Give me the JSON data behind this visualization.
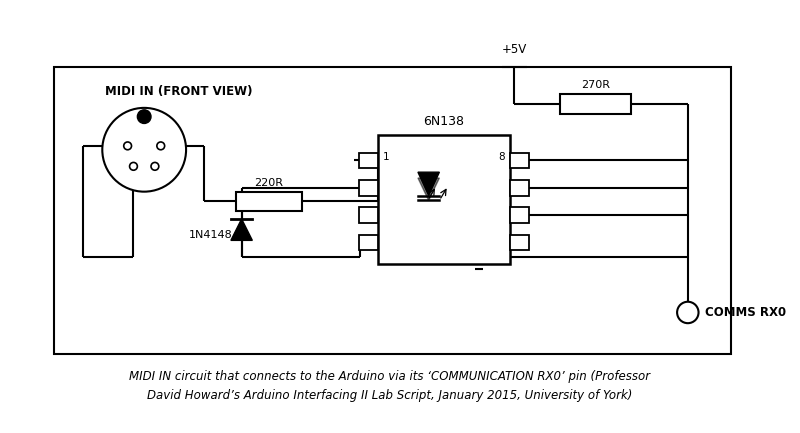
{
  "caption_line1": "MIDI IN circuit that connects to the Arduino via its ‘COMMUNICATION RX0’ pin (Professor",
  "caption_line2": "David Howard’s Arduino Interfacing II Lab Script, January 2015, University of York)",
  "bg_color": "#ffffff",
  "label_midi_in": "MIDI IN (FRONT VIEW)",
  "label_220r": "220R",
  "label_1n4148": "1N4148",
  "label_6n138": "6N138",
  "label_270r": "270R",
  "label_5v": "+5V",
  "label_comms": "COMMS RX0",
  "label_pin1": "1",
  "label_pin8": "8"
}
